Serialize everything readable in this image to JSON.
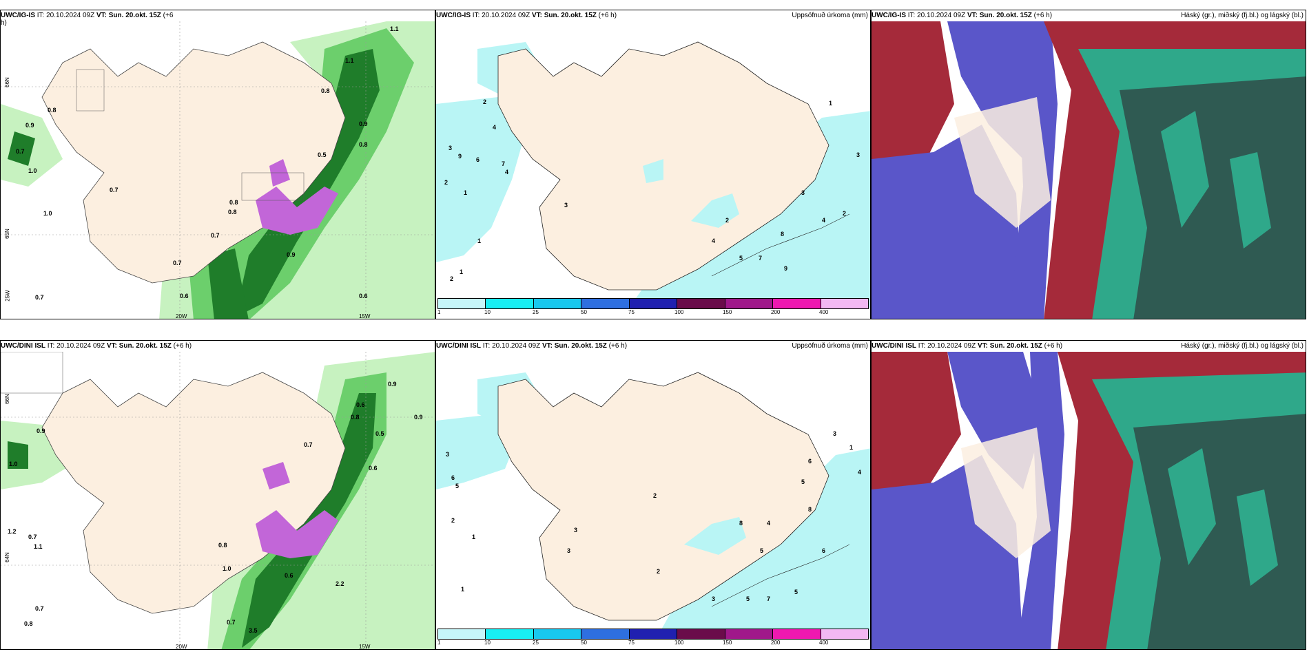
{
  "colors": {
    "land": "#fcefe0",
    "sea_precip": "#b9f5f5",
    "green_light": "#c7f2c0",
    "green_mid": "#6ccf6c",
    "green_dark": "#1f7d2a",
    "purple": "#c266d8",
    "red_cloud": "#a52a3a",
    "blue_cloud": "#5a56c9",
    "teal_cloud": "#2fa88a",
    "dark_teal": "#2f5a52"
  },
  "rows": [
    {
      "model": "UWC/IG-IS",
      "p1": {
        "it_label": "IT:",
        "it_value": "20.10.2024 09Z",
        "vt_label": "VT:",
        "vt_value": "Sun. 20.okt. 15Z",
        "lead": "(+6",
        "lead2": "h)"
      },
      "p2": {
        "it_label": "IT:",
        "it_value": "20.10.2024 09Z",
        "vt_label": "VT:",
        "vt_value": "Sun. 20.okt. 15Z",
        "lead": "(+6 h)",
        "right_title": "Uppsöfnuð úrkoma (mm)"
      },
      "p3": {
        "it_label": "IT:",
        "it_value": "20.10.2024 09Z",
        "vt_label": "VT:",
        "vt_value": "Sun. 20.okt. 15Z",
        "lead": "(+6 h)",
        "right_title": "Háský (gr.), miðský (fj.bl.) og lágský (bl.)"
      }
    },
    {
      "model": "UWC/DINI ISL",
      "p1": {
        "it_label": "IT:",
        "it_value": "20.10.2024 09Z",
        "vt_label": "VT:",
        "vt_value": "Sun. 20.okt. 15Z",
        "lead": "(+6 h)",
        "lead2": ""
      },
      "p2": {
        "it_label": "IT:",
        "it_value": "20.10.2024 09Z",
        "vt_label": "VT:",
        "vt_value": "Sun. 20.okt. 15Z",
        "lead": "(+6 h)",
        "right_title": "Uppsöfnuð úrkoma (mm)"
      },
      "p3": {
        "it_label": "IT:",
        "it_value": "20.10.2024 09Z",
        "vt_label": "VT:",
        "vt_value": "Sun. 20.okt. 15Z",
        "lead": "(+6 h)",
        "right_title": "Háský (gr.), miðský (fj.bl.) og lágský (bl.)"
      }
    }
  ],
  "colorbar": {
    "ticks": [
      "1",
      "10",
      "25",
      "50",
      "75",
      "100",
      "150",
      "200",
      "400"
    ],
    "segments": [
      "#c6f6f9",
      "#18eef2",
      "#18c8ee",
      "#2e6fe0",
      "#2020b0",
      "#6a0c4a",
      "#a0188a",
      "#ee18b0",
      "#f2b8f2"
    ]
  },
  "axis_labels": {
    "lat66": "66N",
    "lat65": "65N",
    "lat64": "64N",
    "lon20": "20W",
    "lon15": "15W",
    "lon25": "25W"
  },
  "numbers_top_left": [
    "1.1",
    "1.1",
    "0.8",
    "0.8",
    "0.9",
    "0.7",
    "1.0",
    "0.7",
    "1.0",
    "0.9",
    "0.8",
    "0.8",
    "0.7",
    "0.7",
    "0.6",
    "0.6",
    "0.5",
    "0.7",
    "0.9",
    "0.8"
  ],
  "numbers_bottom_left": [
    "0.9",
    "0.9",
    "0.6",
    "0.8",
    "0.9",
    "1.0",
    "1.2",
    "0.7",
    "1.1",
    "0.7",
    "0.8",
    "0.8",
    "1.0",
    "0.6",
    "0.5",
    "0.7",
    "0.6",
    "2.2",
    "3.5",
    "0.7"
  ],
  "numbers_top_mid": [
    "2",
    "4",
    "3",
    "9",
    "6",
    "1",
    "2",
    "4",
    "7",
    "3",
    "1",
    "2",
    "1",
    "1",
    "3",
    "2",
    "4",
    "5",
    "7",
    "9",
    "3",
    "4",
    "8",
    "2"
  ],
  "numbers_bottom_mid": [
    "3",
    "6",
    "5",
    "2",
    "1",
    "1",
    "2",
    "3",
    "3",
    "5",
    "8",
    "4",
    "5",
    "6",
    "3",
    "2",
    "1",
    "4",
    "5",
    "7",
    "6",
    "3",
    "5",
    "8"
  ]
}
